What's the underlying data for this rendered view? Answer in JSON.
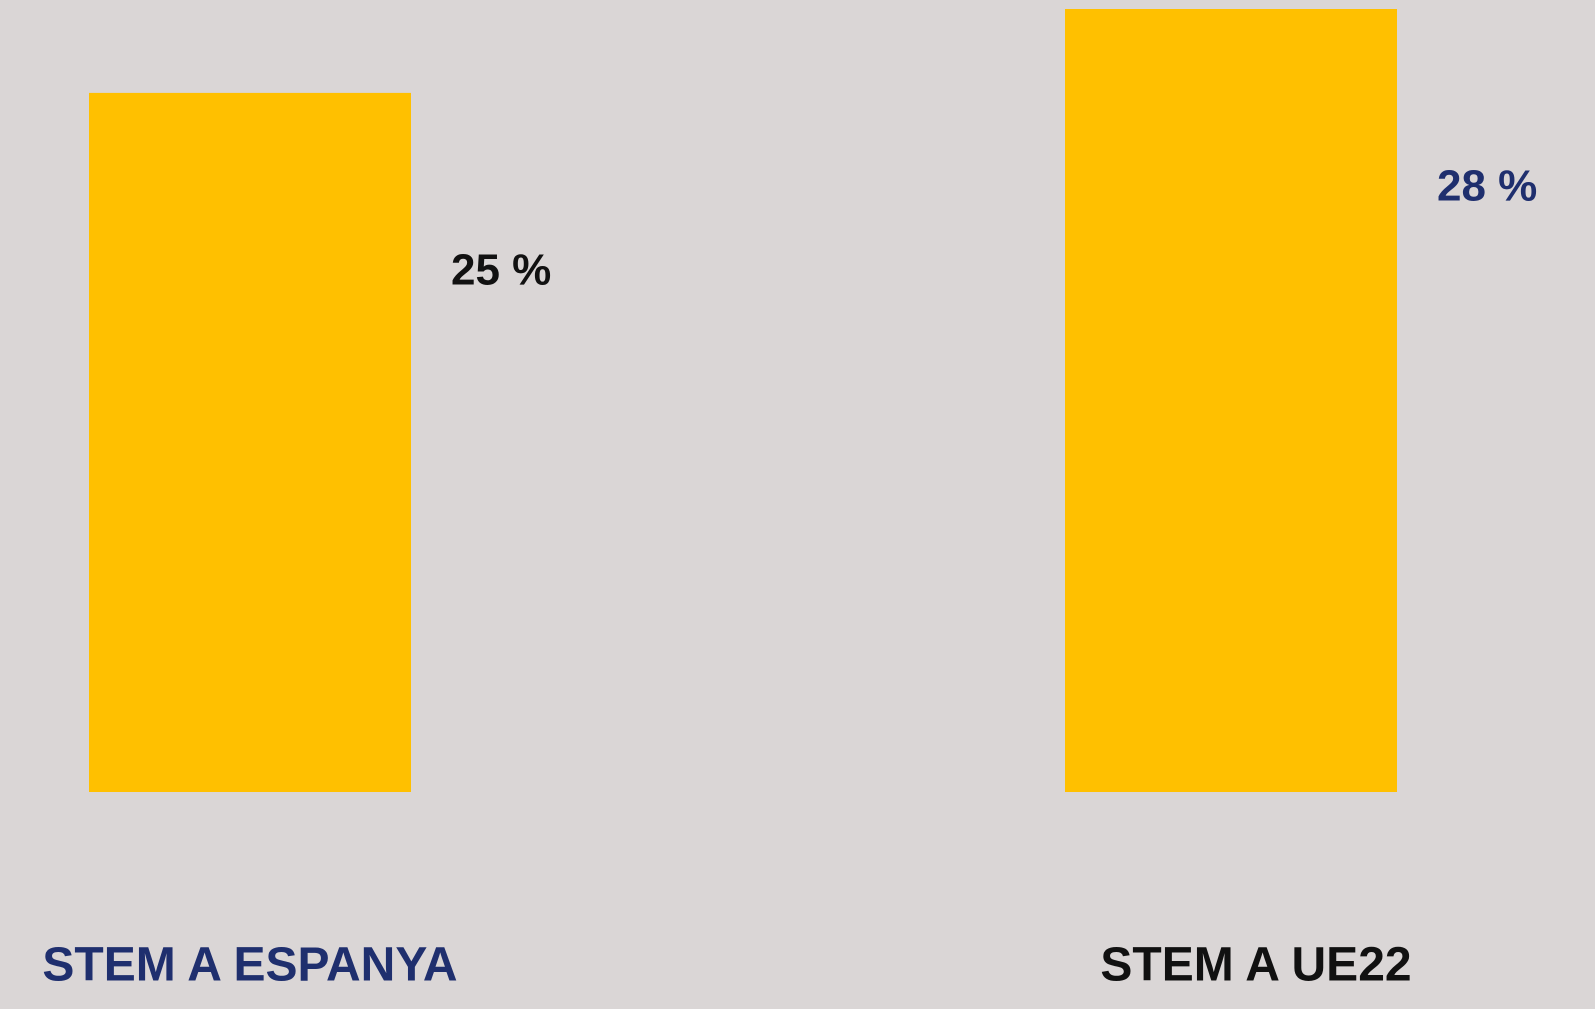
{
  "chart_data": {
    "type": "bar",
    "categories": [
      "STEM A ESPANYA",
      "STEM A UE22"
    ],
    "values": [
      25,
      28
    ],
    "value_labels": [
      "25 %",
      "28 %"
    ],
    "color": "#ffc000"
  }
}
